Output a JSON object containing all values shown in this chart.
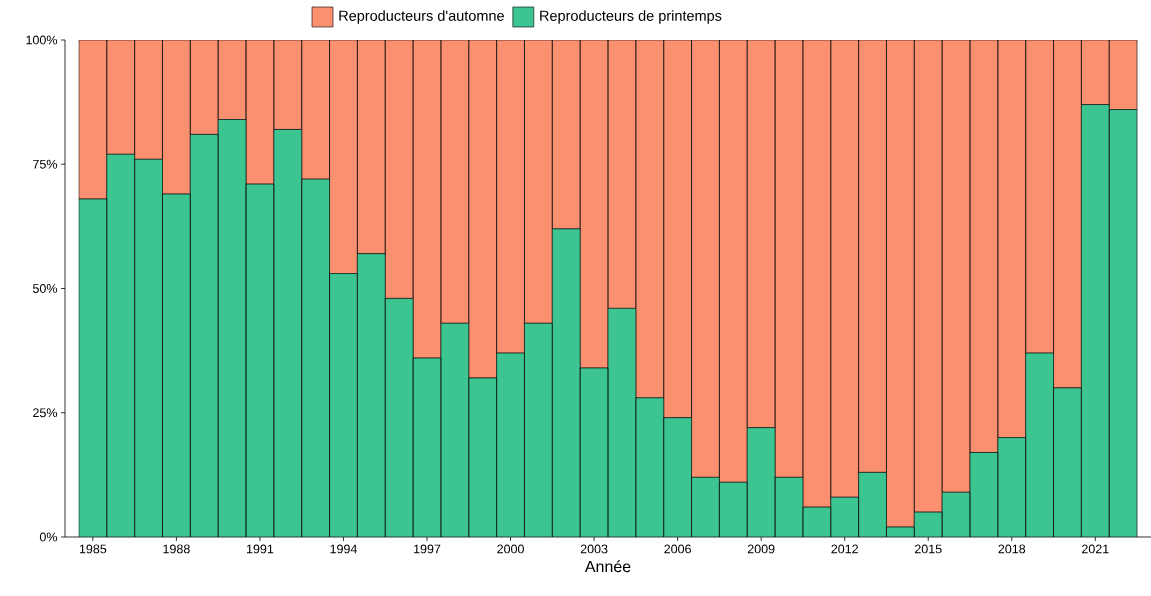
{
  "chart_data": {
    "type": "bar",
    "stacked": true,
    "xlabel": "Année",
    "x": [
      1985,
      1986,
      1987,
      1988,
      1989,
      1990,
      1991,
      1992,
      1993,
      1994,
      1995,
      1996,
      1997,
      1998,
      1999,
      2000,
      2001,
      2002,
      2003,
      2004,
      2005,
      2006,
      2007,
      2008,
      2009,
      2010,
      2011,
      2012,
      2013,
      2014,
      2015,
      2016,
      2017,
      2018,
      2019,
      2020,
      2021,
      2022
    ],
    "series": [
      {
        "name": "Reproducteurs de printemps",
        "color": "#3cc491",
        "values": [
          68,
          77,
          76,
          69,
          81,
          84,
          71,
          82,
          72,
          53,
          57,
          48,
          36,
          43,
          32,
          37,
          43,
          62,
          34,
          46,
          28,
          24,
          12,
          11,
          22,
          12,
          6,
          8,
          13,
          2,
          5,
          9,
          17,
          20,
          37,
          30,
          87,
          86
        ]
      },
      {
        "name": "Reproducteurs d'automne",
        "color": "#fb9070",
        "values": [
          32,
          23,
          24,
          31,
          19,
          16,
          29,
          18,
          28,
          47,
          43,
          52,
          64,
          57,
          68,
          63,
          57,
          38,
          66,
          54,
          72,
          76,
          88,
          89,
          78,
          88,
          94,
          92,
          87,
          98,
          95,
          91,
          83,
          80,
          63,
          70,
          13,
          14
        ]
      }
    ],
    "xlim": [
      1984,
      2023
    ],
    "xticks": [
      1985,
      1988,
      1991,
      1994,
      1997,
      2000,
      2003,
      2006,
      2009,
      2012,
      2015,
      2018,
      2021
    ],
    "ylim": [
      0,
      100
    ],
    "yticks": [
      {
        "value": 0,
        "label": "0%"
      },
      {
        "value": 25,
        "label": "25%"
      },
      {
        "value": 50,
        "label": "50%"
      },
      {
        "value": 75,
        "label": "75%"
      },
      {
        "value": 100,
        "label": "100%"
      }
    ],
    "legend": "top"
  }
}
